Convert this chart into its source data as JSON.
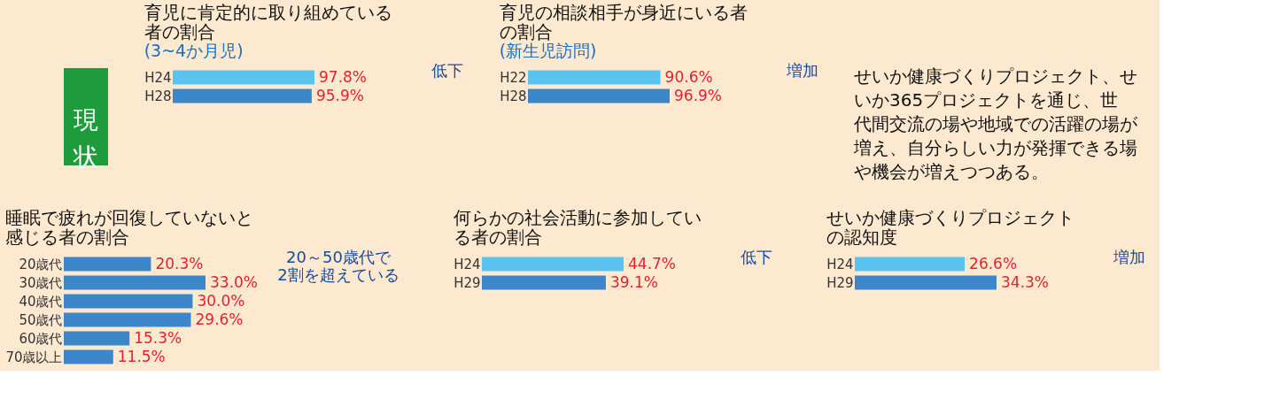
{
  "chart_data": [
    {
      "type": "other",
      "annotations": [
        "現状"
      ]
    },
    {
      "type": "bar",
      "orientation": "horizontal",
      "title": "育児に肯定的に取り組めている者の割合",
      "subtitle": "(3~4か月児)",
      "categories": [
        "H24",
        "H28"
      ],
      "values": [
        97.8,
        95.9
      ],
      "colors": [
        "#5bc3ef",
        "#3b87c9"
      ],
      "value_labels": [
        "97.8%",
        "95.9%"
      ],
      "annotations": [
        "低下"
      ]
    },
    {
      "type": "bar",
      "orientation": "horizontal",
      "title": "育児の相談相手が身近にいる者の割合",
      "subtitle": "(新生児訪問)",
      "categories": [
        "H22",
        "H28"
      ],
      "values": [
        90.6,
        96.9
      ],
      "colors": [
        "#5bc3ef",
        "#3b87c9"
      ],
      "value_labels": [
        "90.6%",
        "96.9%"
      ],
      "annotations": [
        "増加"
      ]
    },
    {
      "type": "other",
      "annotations": [
        "せいか健康づくりプロジェクト、せいか365プロジェクトを通じ、世代間交流の場や地域での活躍の場が増え、自分らしい力が発揮できる場や機会が増えつつある。"
      ]
    },
    {
      "type": "bar",
      "orientation": "horizontal",
      "title": "睡眠で疲れが回復していないと感じる者の割合",
      "categories": [
        "20歳代",
        "30歳代",
        "40歳代",
        "50歳代",
        "60歳代",
        "70歳以上"
      ],
      "values": [
        20.3,
        33.0,
        30.0,
        29.6,
        15.3,
        11.5
      ],
      "colors": [
        "#3b87c9",
        "#3b87c9",
        "#3b87c9",
        "#3b87c9",
        "#3b87c9",
        "#3b87c9"
      ],
      "value_labels": [
        "20.3%",
        "33.0%",
        "30.0%",
        "29.6%",
        "15.3%",
        "11.5%"
      ],
      "annotations": [
        "20～50歳代で2割を超えている"
      ]
    },
    {
      "type": "bar",
      "orientation": "horizontal",
      "title": "何らかの社会活動に参加している者の割合",
      "categories": [
        "H24",
        "H29"
      ],
      "values": [
        44.7,
        39.1
      ],
      "colors": [
        "#5bc3ef",
        "#3b87c9"
      ],
      "value_labels": [
        "44.7%",
        "39.1%"
      ],
      "annotations": [
        "低下"
      ]
    },
    {
      "type": "bar",
      "orientation": "horizontal",
      "title": "せいか健康づくりプロジェクトの認知度",
      "categories": [
        "H24",
        "H29"
      ],
      "values": [
        26.6,
        34.3
      ],
      "colors": [
        "#5bc3ef",
        "#3b87c9"
      ],
      "value_labels": [
        "26.6%",
        "34.3%"
      ],
      "annotations": [
        "増加"
      ]
    }
  ]
}
